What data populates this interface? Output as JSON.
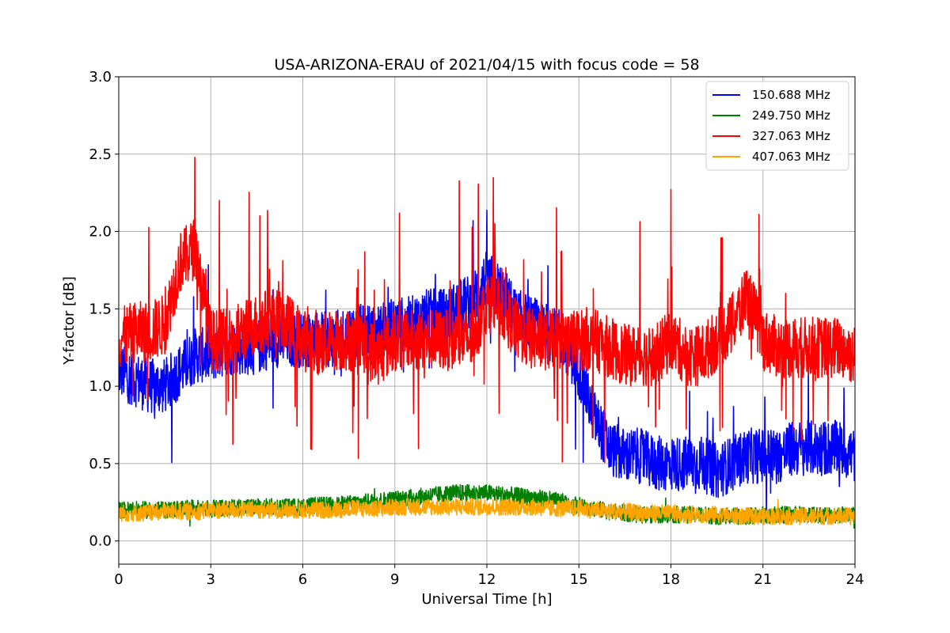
{
  "chart_data": {
    "type": "line",
    "title": "USA-ARIZONA-ERAU of 2021/04/15 with focus code = 58",
    "xlabel": "Universal Time [h]",
    "ylabel": "Y-factor [dB]",
    "xlim": [
      0,
      24
    ],
    "ylim": [
      -0.15,
      3.0
    ],
    "xticks": [
      0,
      3,
      6,
      9,
      12,
      15,
      18,
      21,
      24
    ],
    "xtick_labels": [
      "0",
      "3",
      "6",
      "9",
      "12",
      "15",
      "18",
      "21",
      "24"
    ],
    "yticks": [
      0.0,
      0.5,
      1.0,
      1.5,
      2.0,
      2.5,
      3.0
    ],
    "ytick_labels": [
      "0.0",
      "0.5",
      "1.0",
      "1.5",
      "2.0",
      "2.5",
      "3.0"
    ],
    "grid": true,
    "legend_position": "top-right",
    "series": [
      {
        "name": "150.688 MHz",
        "color": "#0000ff",
        "x": [
          0,
          0.5,
          1,
          1.5,
          2,
          2.5,
          3,
          3.5,
          4,
          4.5,
          5,
          5.5,
          6,
          6.5,
          7,
          7.5,
          8,
          8.5,
          9,
          9.5,
          10,
          10.5,
          11,
          11.5,
          12,
          12.5,
          13,
          13.5,
          14,
          14.5,
          15,
          15.5,
          16,
          16.5,
          17,
          17.5,
          18,
          18.5,
          19,
          19.5,
          20,
          20.5,
          21,
          21.5,
          22,
          22.5,
          23,
          23.5,
          24
        ],
        "values": [
          1.1,
          1.05,
          1.0,
          1.0,
          1.1,
          1.2,
          1.2,
          1.25,
          1.25,
          1.25,
          1.3,
          1.3,
          1.3,
          1.3,
          1.3,
          1.35,
          1.35,
          1.35,
          1.4,
          1.4,
          1.45,
          1.45,
          1.5,
          1.55,
          1.7,
          1.6,
          1.45,
          1.4,
          1.35,
          1.3,
          1.1,
          0.8,
          0.6,
          0.55,
          0.55,
          0.5,
          0.5,
          0.5,
          0.5,
          0.45,
          0.5,
          0.55,
          0.55,
          0.55,
          0.6,
          0.6,
          0.6,
          0.6,
          0.55
        ]
      },
      {
        "name": "249.750 MHz",
        "color": "#008000",
        "x": [
          0,
          0.5,
          1,
          1.5,
          2,
          2.5,
          3,
          3.5,
          4,
          4.5,
          5,
          5.5,
          6,
          6.5,
          7,
          7.5,
          8,
          8.5,
          9,
          9.5,
          10,
          10.5,
          11,
          11.5,
          12,
          12.5,
          13,
          13.5,
          14,
          14.5,
          15,
          15.5,
          16,
          16.5,
          17,
          17.5,
          18,
          18.5,
          19,
          19.5,
          20,
          20.5,
          21,
          21.5,
          22,
          22.5,
          23,
          23.5,
          24
        ],
        "values": [
          0.2,
          0.2,
          0.2,
          0.2,
          0.21,
          0.21,
          0.21,
          0.21,
          0.22,
          0.22,
          0.22,
          0.22,
          0.22,
          0.23,
          0.23,
          0.24,
          0.25,
          0.26,
          0.27,
          0.28,
          0.29,
          0.3,
          0.31,
          0.31,
          0.31,
          0.3,
          0.29,
          0.28,
          0.27,
          0.25,
          0.23,
          0.21,
          0.19,
          0.18,
          0.17,
          0.17,
          0.17,
          0.17,
          0.17,
          0.16,
          0.16,
          0.16,
          0.17,
          0.17,
          0.17,
          0.17,
          0.17,
          0.17,
          0.17
        ]
      },
      {
        "name": "327.063 MHz",
        "color": "#ff0000",
        "x": [
          0,
          0.5,
          1,
          1.5,
          2,
          2.5,
          3,
          3.5,
          4,
          4.5,
          5,
          5.5,
          6,
          6.5,
          7,
          7.5,
          8,
          8.5,
          9,
          9.5,
          10,
          10.5,
          11,
          11.5,
          12,
          12.5,
          13,
          13.5,
          14,
          14.5,
          15,
          15.5,
          16,
          16.5,
          17,
          17.5,
          18,
          18.5,
          19,
          19.5,
          20,
          20.5,
          21,
          21.5,
          22,
          22.5,
          23,
          23.5,
          24
        ],
        "values": [
          1.3,
          1.35,
          1.35,
          1.4,
          1.8,
          1.9,
          1.3,
          1.3,
          1.35,
          1.4,
          1.45,
          1.4,
          1.3,
          1.25,
          1.3,
          1.3,
          1.25,
          1.2,
          1.3,
          1.3,
          1.3,
          1.3,
          1.3,
          1.3,
          1.55,
          1.5,
          1.35,
          1.3,
          1.3,
          1.3,
          1.3,
          1.3,
          1.25,
          1.2,
          1.2,
          1.2,
          1.3,
          1.2,
          1.2,
          1.3,
          1.4,
          1.6,
          1.3,
          1.25,
          1.25,
          1.25,
          1.25,
          1.25,
          1.2
        ]
      },
      {
        "name": "407.063 MHz",
        "color": "#ffa500",
        "x": [
          0,
          0.5,
          1,
          1.5,
          2,
          2.5,
          3,
          3.5,
          4,
          4.5,
          5,
          5.5,
          6,
          6.5,
          7,
          7.5,
          8,
          8.5,
          9,
          9.5,
          10,
          10.5,
          11,
          11.5,
          12,
          12.5,
          13,
          13.5,
          14,
          14.5,
          15,
          15.5,
          16,
          16.5,
          17,
          17.5,
          18,
          18.5,
          19,
          19.5,
          20,
          20.5,
          21,
          21.5,
          22,
          22.5,
          23,
          23.5,
          24
        ],
        "values": [
          0.18,
          0.18,
          0.18,
          0.19,
          0.19,
          0.19,
          0.2,
          0.2,
          0.2,
          0.2,
          0.2,
          0.2,
          0.2,
          0.2,
          0.2,
          0.21,
          0.21,
          0.21,
          0.22,
          0.22,
          0.22,
          0.22,
          0.22,
          0.22,
          0.22,
          0.22,
          0.22,
          0.22,
          0.21,
          0.21,
          0.21,
          0.2,
          0.19,
          0.19,
          0.18,
          0.18,
          0.18,
          0.17,
          0.17,
          0.17,
          0.16,
          0.16,
          0.16,
          0.16,
          0.16,
          0.16,
          0.16,
          0.16,
          0.16
        ]
      }
    ]
  }
}
